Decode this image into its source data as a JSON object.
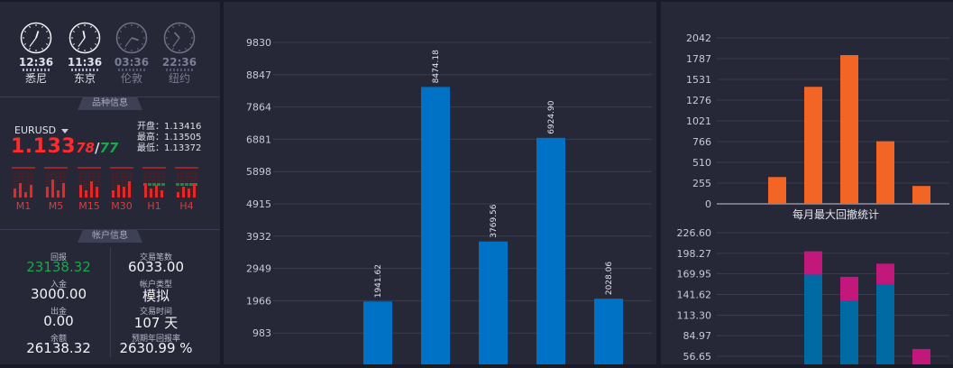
{
  "clocks": [
    {
      "time": "12:36",
      "city": "悉尼",
      "active": true,
      "hour_angle": 18,
      "minute_angle": 216
    },
    {
      "time": "11:36",
      "city": "东京",
      "active": true,
      "hour_angle": 348,
      "minute_angle": 216
    },
    {
      "time": "03:36",
      "city": "伦敦",
      "active": false,
      "hour_angle": 108,
      "minute_angle": 216
    },
    {
      "time": "22:36",
      "city": "纽约",
      "active": false,
      "hour_angle": 318,
      "minute_angle": 216
    }
  ],
  "symbol_section": {
    "title": "品种信息",
    "symbol": "EURUSD",
    "price_big": "1.133",
    "price_small": "78",
    "price_slash": "/",
    "price_green": "77",
    "open_label": "开盘：",
    "open": "1.13416",
    "high_label": "最高：",
    "high": "1.13505",
    "low_label": "最低：",
    "low": "1.13372",
    "timeframes": [
      "M1",
      "M5",
      "M15",
      "M30",
      "H1",
      "H4"
    ]
  },
  "account": {
    "title": "帐户信息",
    "items": [
      {
        "label": "回报",
        "value": "23138.32",
        "green": true
      },
      {
        "label": "交易笔数",
        "value": "6033.00"
      },
      {
        "label": "入金",
        "value": "3000.00"
      },
      {
        "label": "帐户类型",
        "value": "模拟"
      },
      {
        "label": "出金",
        "value": "0.00"
      },
      {
        "label": "交易时间",
        "value": "107 天"
      },
      {
        "label": "余额",
        "value": "26138.32"
      },
      {
        "label": "预期年回报率",
        "value": "2630.99 %"
      }
    ]
  },
  "colors": {
    "blue": "#0072c6",
    "orange": "#f26524",
    "magenta": "#c2187c",
    "teal": "#006aa3"
  },
  "chart_data": [
    {
      "type": "bar",
      "yticks": [
        "983",
        "1966",
        "2949",
        "3932",
        "4915",
        "5898",
        "6881",
        "7864",
        "8847",
        "9830"
      ],
      "ytick_values": [
        983,
        1966,
        2949,
        3932,
        4915,
        5898,
        6881,
        7864,
        8847,
        9830
      ],
      "ylim": [
        0,
        9830
      ],
      "values": [
        1941.62,
        8474.18,
        3769.56,
        6924.9,
        2028.06
      ],
      "labels": [
        "1941.62",
        "8474.18",
        "3769.56",
        "6924.90",
        "2028.06"
      ]
    },
    {
      "type": "bar",
      "title": "每月最大回撤统计",
      "yticks": [
        "0",
        "255",
        "510",
        "766",
        "1021",
        "1276",
        "1531",
        "1787",
        "2042"
      ],
      "ytick_values": [
        0,
        255,
        510,
        766,
        1021,
        1276,
        1531,
        1787,
        2042
      ],
      "ylim": [
        0,
        2042
      ],
      "values": [
        330,
        1440,
        1830,
        770,
        220
      ]
    },
    {
      "type": "bar",
      "yticks": [
        "56.65",
        "84.97",
        "113.30",
        "141.62",
        "169.95",
        "198.27",
        "226.60"
      ],
      "ytick_values": [
        56.65,
        84.97,
        113.3,
        141.62,
        169.95,
        198.27,
        226.6
      ],
      "ylim": [
        56.65,
        226.6
      ],
      "series": [
        {
          "values": [
            null,
            169,
            133,
            156,
            null
          ]
        },
        {
          "values": [
            null,
            32,
            33,
            28,
            10
          ]
        }
      ]
    }
  ]
}
